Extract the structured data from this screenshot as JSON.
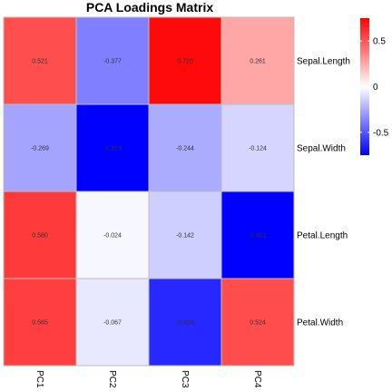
{
  "chart_data": {
    "type": "heatmap",
    "title": "PCA Loadings Matrix",
    "rows": [
      "Sepal.Length",
      "Sepal.Width",
      "Petal.Length",
      "Petal.Width"
    ],
    "columns": [
      "PC1",
      "PC2",
      "PC3",
      "PC4"
    ],
    "values": [
      [
        0.521,
        -0.377,
        0.72,
        0.261
      ],
      [
        -0.269,
        -0.923,
        -0.244,
        -0.124
      ],
      [
        0.58,
        -0.024,
        -0.142,
        -0.801
      ],
      [
        0.565,
        -0.067,
        -0.634,
        0.524
      ]
    ],
    "labels": [
      [
        "0.521",
        "-0.377",
        "0.720",
        "0.261"
      ],
      [
        "-0.269",
        "-0.923",
        "-0.244",
        "-0.124"
      ],
      [
        "0.580",
        "-0.024",
        "-0.142",
        "-0.801"
      ],
      [
        "0.565",
        "-0.067",
        "-0.634",
        "0.524"
      ]
    ],
    "color_scale": {
      "low": "#0000ff",
      "mid": "#ffffff",
      "high": "#ff0000",
      "range": [
        -0.75,
        0.75
      ],
      "ticks": [
        -0.5,
        0,
        0.5
      ],
      "tick_labels": [
        "-0.5",
        "0",
        "0.5"
      ]
    },
    "legend_position": "right",
    "grid_color": "#bdbdbd"
  }
}
